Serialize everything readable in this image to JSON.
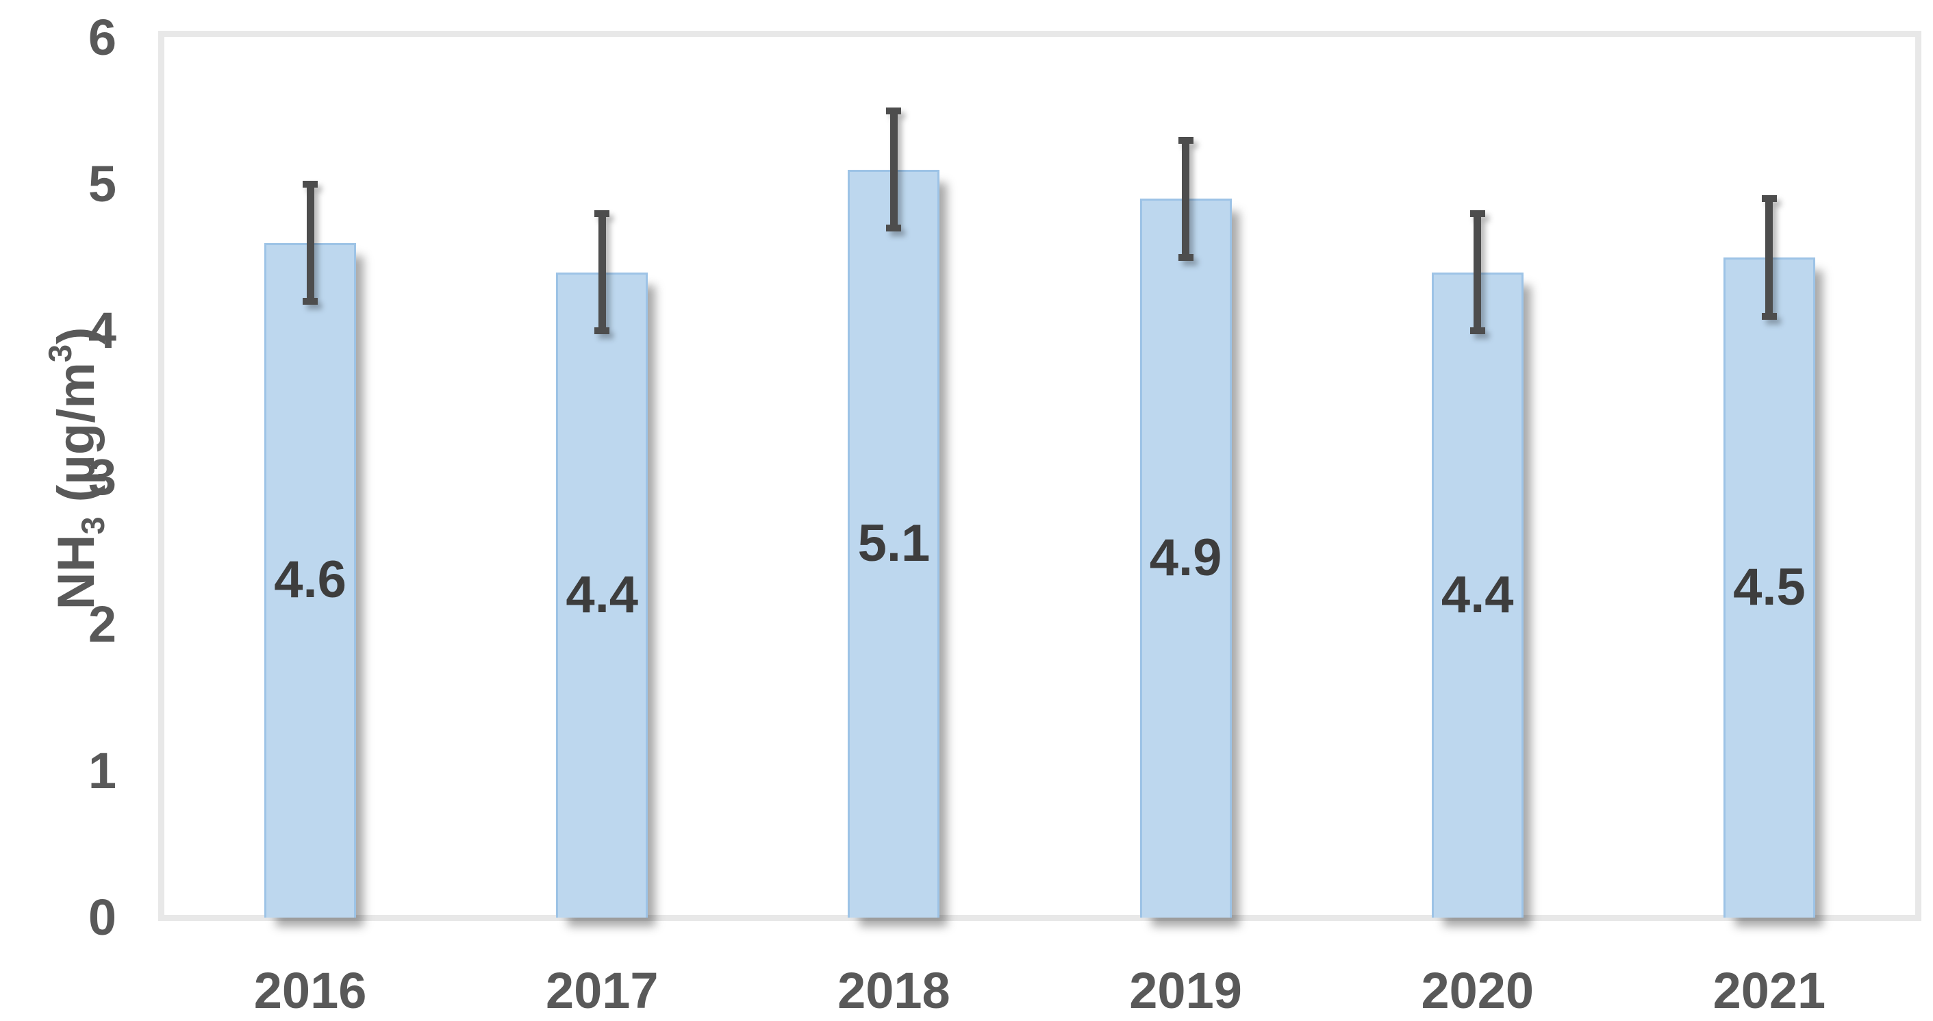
{
  "chart_data": {
    "type": "bar",
    "title": "",
    "xlabel": "",
    "ylabel": "NH₃ (µg/m³)",
    "ylabel_parts": [
      {
        "text": "NH",
        "style": "normal"
      },
      {
        "text": "3",
        "style": "sub"
      },
      {
        "text": " (µg/m",
        "style": "normal"
      },
      {
        "text": "3",
        "style": "sup"
      },
      {
        "text": ")",
        "style": "normal"
      }
    ],
    "categories": [
      "2016",
      "2017",
      "2018",
      "2019",
      "2020",
      "2021"
    ],
    "values": [
      4.6,
      4.4,
      5.1,
      4.9,
      4.4,
      4.5
    ],
    "data_labels": [
      "4.6",
      "4.4",
      "5.1",
      "4.9",
      "4.4",
      "4.5"
    ],
    "error_bars": {
      "plus": 0.4,
      "minus": 0.4
    },
    "ylim": [
      0,
      6
    ],
    "yticks": [
      "0",
      "1",
      "2",
      "3",
      "4",
      "5",
      "6"
    ],
    "grid": false,
    "legend": false,
    "colors": {
      "bar_fill": "#bdd7ee",
      "bar_border": "#9dc3e6",
      "error_bar": "#4d4d4d",
      "axis_text": "#595959",
      "data_label_text": "#3d3d3d",
      "plot_border": "#e8e8e8"
    }
  }
}
